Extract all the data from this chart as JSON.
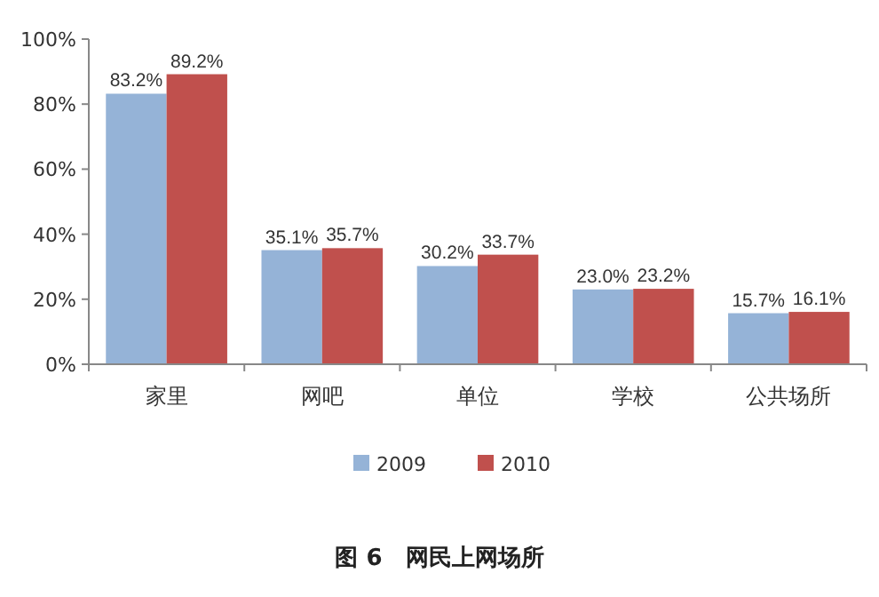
{
  "chart_data": {
    "type": "bar",
    "title": "图 6　网民上网场所",
    "categories": [
      "家里",
      "网吧",
      "单位",
      "学校",
      "公共场所"
    ],
    "series": [
      {
        "name": "2009",
        "color": "#95b3d7",
        "values": [
          83.2,
          35.1,
          30.2,
          23.0,
          15.7
        ],
        "value_labels": [
          "83.2%",
          "35.1%",
          "30.2%",
          "23.0%",
          "15.7%"
        ]
      },
      {
        "name": "2010",
        "color": "#c0504d",
        "values": [
          89.2,
          35.7,
          33.7,
          23.2,
          16.1
        ],
        "value_labels": [
          "89.2%",
          "35.7%",
          "33.7%",
          "23.2%",
          "16.1%"
        ]
      }
    ],
    "ylim": [
      0,
      100
    ],
    "yticks": [
      {
        "value": 0,
        "label": "0%"
      },
      {
        "value": 20,
        "label": "20%"
      },
      {
        "value": 40,
        "label": "40%"
      },
      {
        "value": 60,
        "label": "60%"
      },
      {
        "value": 80,
        "label": "80%"
      },
      {
        "value": 100,
        "label": "100%"
      }
    ],
    "grid": false,
    "legend": "bottom"
  }
}
